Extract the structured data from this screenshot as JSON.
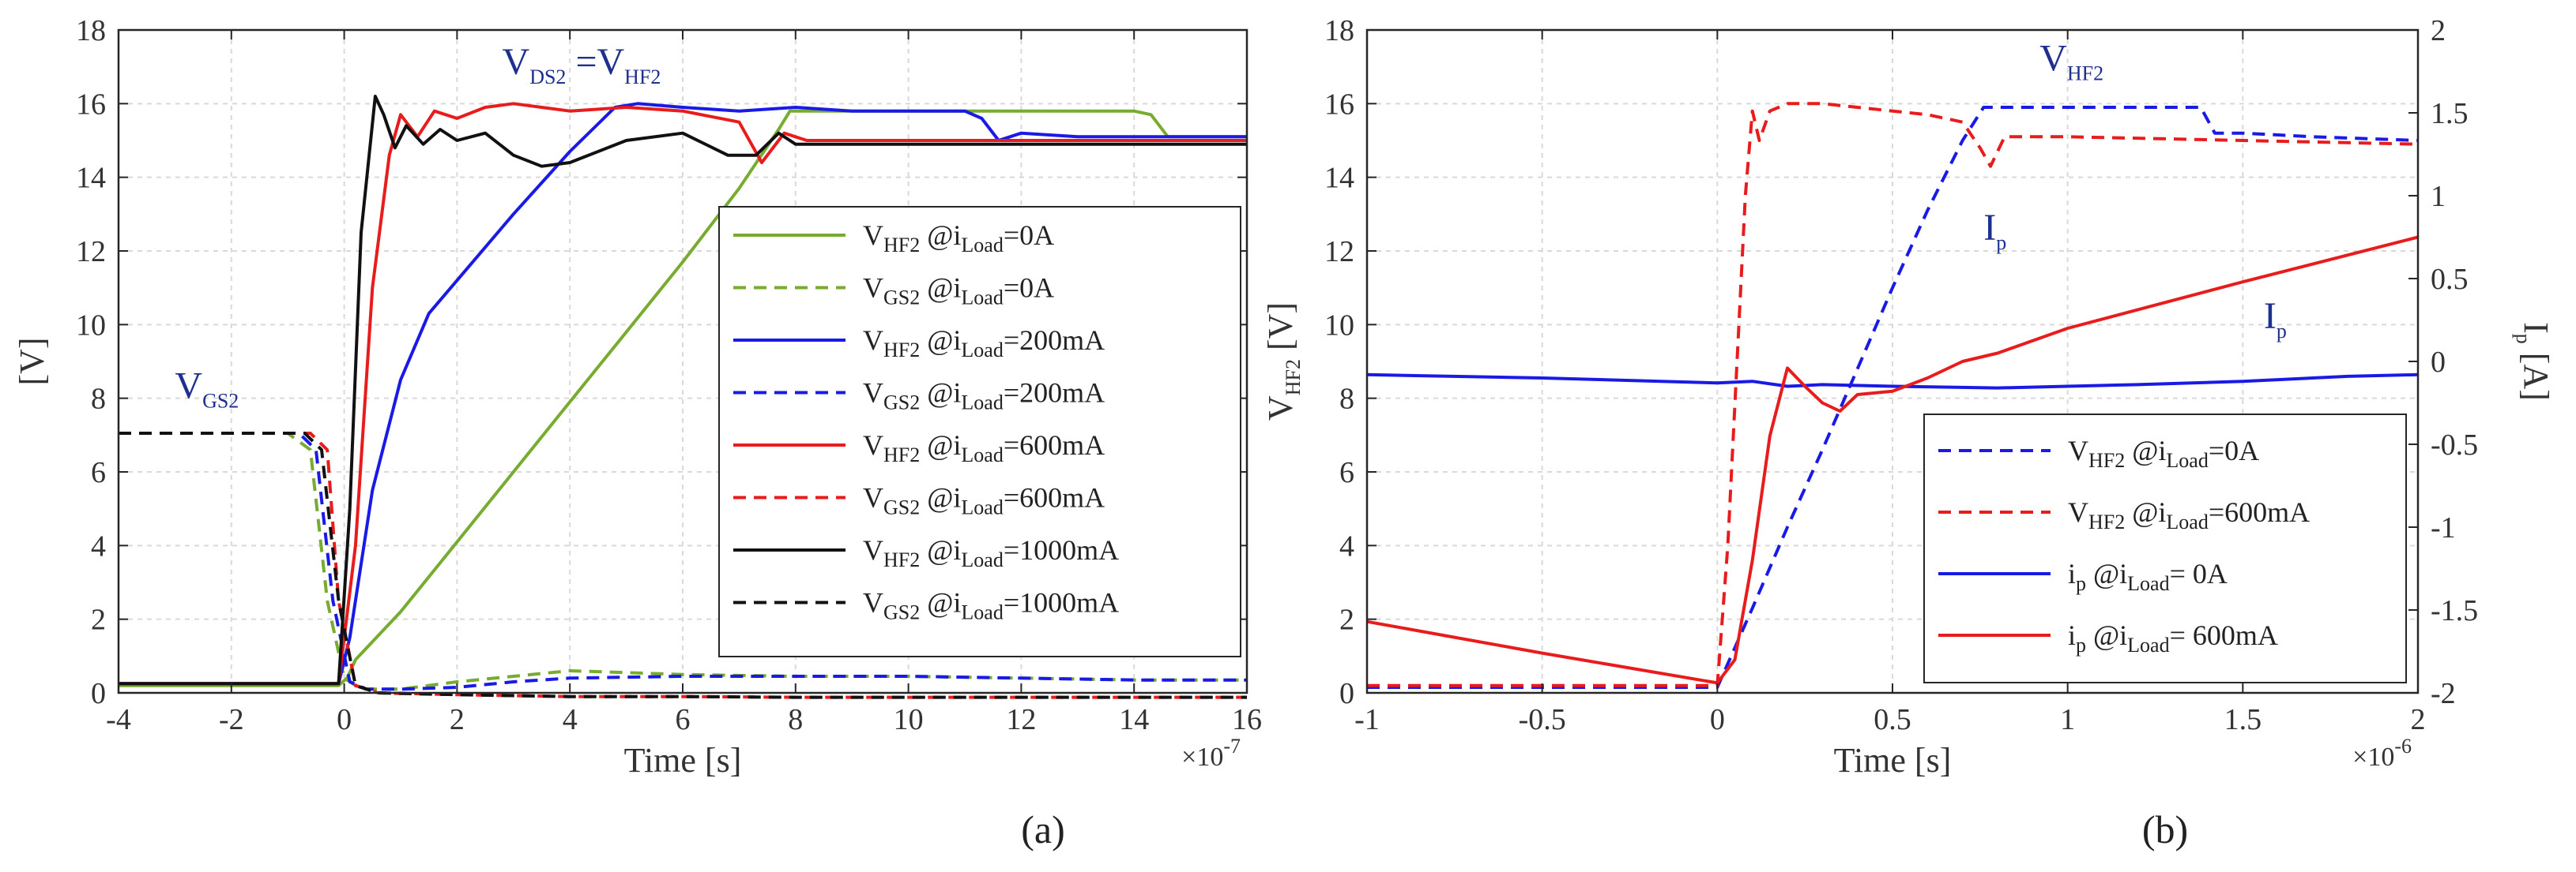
{
  "chart_data": [
    {
      "type": "line",
      "panel_label": "(a)",
      "title": "",
      "xlabel": "Time [s]",
      "ylabel": "[V]",
      "x_exponent": "×10",
      "x_exponent_power": "-7",
      "xlim": [
        -4,
        16
      ],
      "ylim": [
        0,
        18
      ],
      "grid": true,
      "xticks": [
        -4,
        -2,
        0,
        2,
        4,
        6,
        8,
        10,
        12,
        14,
        16
      ],
      "xtick_labels": [
        "-4",
        "-2",
        "0",
        "2",
        "4",
        "6",
        "8",
        "10",
        "12",
        "14",
        "16"
      ],
      "yticks": [
        0,
        2,
        4,
        6,
        8,
        10,
        12,
        14,
        16,
        18
      ],
      "ytick_labels": [
        "0",
        "2",
        "4",
        "6",
        "8",
        "10",
        "12",
        "14",
        "16",
        "18"
      ],
      "annotations": [
        {
          "base": "V",
          "sub": "DS2",
          "mid": " =V",
          "sub2": "HF2",
          "x": 2.8,
          "y": 16.8
        },
        {
          "base": "V",
          "sub": "GS2",
          "mid": "",
          "sub2": "",
          "x": -3.0,
          "y": 8.0
        }
      ],
      "legend_position": "center-right",
      "series": [
        {
          "name": "V_HF2 @i_Load=0A",
          "lbl": {
            "v": "V",
            "vs": "HF2",
            "at": " @i",
            "is": "Load",
            "val": "=0A"
          },
          "color": "#77ac30",
          "dash": false,
          "x": [
            -4,
            -0.1,
            0.05,
            0.2,
            1,
            2,
            3,
            4,
            5,
            6,
            7,
            7.7,
            7.9,
            8.2,
            9,
            10,
            11,
            12,
            13,
            14,
            14.3,
            14.6,
            16
          ],
          "y": [
            0.2,
            0.2,
            0.4,
            0.9,
            2.2,
            4.1,
            6.0,
            7.9,
            9.8,
            11.7,
            13.7,
            15.3,
            15.8,
            15.8,
            15.8,
            15.8,
            15.8,
            15.8,
            15.8,
            15.8,
            15.7,
            15.1,
            15.1
          ]
        },
        {
          "name": "V_GS2 @i_Load=0A",
          "lbl": {
            "v": "V",
            "vs": "GS2",
            "at": " @i",
            "is": "Load",
            "val": "=0A"
          },
          "color": "#77ac30",
          "dash": true,
          "x": [
            -4,
            -1.0,
            -0.6,
            -0.3,
            0.0,
            0.3,
            1,
            2,
            3,
            4,
            5,
            6,
            8,
            10,
            12,
            14,
            16
          ],
          "y": [
            7.05,
            7.05,
            6.6,
            2.5,
            0.4,
            0.1,
            0.1,
            0.3,
            0.45,
            0.6,
            0.55,
            0.5,
            0.45,
            0.45,
            0.4,
            0.35,
            0.35
          ]
        },
        {
          "name": "V_HF2 @i_Load=200mA",
          "lbl": {
            "v": "V",
            "vs": "HF2",
            "at": " @i",
            "is": "Load",
            "val": "=200mA"
          },
          "color": "#1a1ae6",
          "dash": false,
          "x": [
            -4,
            -0.1,
            0.1,
            0.5,
            1.0,
            1.5,
            2.0,
            3,
            4,
            4.8,
            5.2,
            6,
            7,
            8,
            9,
            10,
            11,
            11.3,
            11.6,
            12,
            13,
            14,
            16
          ],
          "y": [
            0.25,
            0.25,
            1.5,
            5.5,
            8.5,
            10.3,
            11.2,
            13.0,
            14.7,
            15.9,
            16.0,
            15.9,
            15.8,
            15.9,
            15.8,
            15.8,
            15.8,
            15.6,
            15.0,
            15.2,
            15.1,
            15.1,
            15.1
          ]
        },
        {
          "name": "V_GS2 @i_Load=200mA",
          "lbl": {
            "v": "V",
            "vs": "GS2",
            "at": " @i",
            "is": "Load",
            "val": "=200mA"
          },
          "color": "#1a1ae6",
          "dash": true,
          "x": [
            -4,
            -0.8,
            -0.5,
            -0.2,
            0.1,
            0.4,
            1,
            2,
            3,
            4,
            6,
            8,
            10,
            12,
            14,
            16
          ],
          "y": [
            7.05,
            7.05,
            6.6,
            2.5,
            0.3,
            0.1,
            0.1,
            0.15,
            0.3,
            0.4,
            0.45,
            0.45,
            0.45,
            0.4,
            0.35,
            0.35
          ]
        },
        {
          "name": "V_HF2 @i_Load=600mA",
          "lbl": {
            "v": "V",
            "vs": "HF2",
            "at": " @i",
            "is": "Load",
            "val": "=600mA"
          },
          "color": "#e81c1c",
          "dash": false,
          "x": [
            -4,
            -0.1,
            0.2,
            0.5,
            0.8,
            1.0,
            1.3,
            1.6,
            2.0,
            2.5,
            3.0,
            3.5,
            4.0,
            5,
            6,
            7.0,
            7.4,
            7.8,
            8.2,
            9,
            10,
            12,
            14,
            16
          ],
          "y": [
            0.25,
            0.25,
            4.0,
            11.0,
            14.6,
            15.7,
            15.1,
            15.8,
            15.6,
            15.9,
            16.0,
            15.9,
            15.8,
            15.9,
            15.8,
            15.5,
            14.4,
            15.2,
            15.0,
            15.0,
            15.0,
            15.0,
            15.0,
            15.0
          ]
        },
        {
          "name": "V_GS2 @i_Load=600mA",
          "lbl": {
            "v": "V",
            "vs": "GS2",
            "at": " @i",
            "is": "Load",
            "val": "=600mA"
          },
          "color": "#e81c1c",
          "dash": true,
          "x": [
            -4,
            -0.6,
            -0.3,
            -0.1,
            0.2,
            0.6,
            2,
            4,
            6,
            8,
            10,
            12,
            14,
            16
          ],
          "y": [
            7.05,
            7.05,
            6.6,
            2.5,
            0.2,
            0.0,
            -0.05,
            -0.1,
            -0.1,
            -0.12,
            -0.12,
            -0.12,
            -0.12,
            -0.12
          ]
        },
        {
          "name": "V_HF2 @i_Load=1000mA",
          "lbl": {
            "v": "V",
            "vs": "HF2",
            "at": " @i",
            "is": "Load",
            "val": "=1000mA"
          },
          "color": "#111111",
          "dash": false,
          "x": [
            -4,
            -0.1,
            0.1,
            0.3,
            0.55,
            0.7,
            0.9,
            1.1,
            1.4,
            1.7,
            2.0,
            2.5,
            3.0,
            3.5,
            4.0,
            5,
            6,
            6.8,
            7.3,
            7.7,
            8.0,
            9,
            12,
            16
          ],
          "y": [
            0.25,
            0.25,
            5.0,
            12.5,
            16.2,
            15.7,
            14.8,
            15.4,
            14.9,
            15.3,
            15.0,
            15.2,
            14.6,
            14.3,
            14.4,
            15.0,
            15.2,
            14.6,
            14.6,
            15.2,
            14.9,
            14.9,
            14.9,
            14.9
          ]
        },
        {
          "name": "V_GS2 @i_Load=1000mA",
          "lbl": {
            "v": "V",
            "vs": "GS2",
            "at": " @i",
            "is": "Load",
            "val": "=1000mA"
          },
          "color": "#111111",
          "dash": true,
          "x": [
            -4,
            -0.7,
            -0.4,
            -0.1,
            0.2,
            0.6,
            2,
            4,
            6,
            8,
            10,
            12,
            14,
            16
          ],
          "y": [
            7.05,
            7.05,
            6.6,
            2.5,
            0.2,
            0.0,
            -0.05,
            -0.1,
            -0.1,
            -0.12,
            -0.12,
            -0.12,
            -0.12,
            -0.12
          ]
        }
      ]
    },
    {
      "type": "line",
      "panel_label": "(b)",
      "title": "",
      "xlabel": "Time [s]",
      "ylabel": "V_HF2 [V]",
      "ylabel_parts": {
        "base": "V",
        "sub": "HF2",
        "unit": " [V]"
      },
      "y2label": "I_p [A]",
      "y2label_parts": {
        "base": "I",
        "sub": "p",
        "unit": "[A]"
      },
      "x_exponent": "×10",
      "x_exponent_power": "-6",
      "xlim": [
        -1,
        2
      ],
      "ylim": [
        0,
        18
      ],
      "y2lim": [
        -2,
        2
      ],
      "grid": true,
      "xticks": [
        -1,
        -0.5,
        0,
        0.5,
        1,
        1.5,
        2
      ],
      "xtick_labels": [
        "-1",
        "-0.5",
        "0",
        "0.5",
        "1",
        "1.5",
        "2"
      ],
      "yticks": [
        0,
        2,
        4,
        6,
        8,
        10,
        12,
        14,
        16,
        18
      ],
      "ytick_labels": [
        "0",
        "2",
        "4",
        "6",
        "8",
        "10",
        "12",
        "14",
        "16",
        "18"
      ],
      "y2ticks": [
        -2,
        -1.5,
        -1,
        -0.5,
        0,
        0.5,
        1,
        1.5,
        2
      ],
      "y2tick_labels": [
        "-2",
        "-1.5",
        "-1",
        "-0.5",
        "0",
        "0.5",
        "1",
        "1.5",
        "2"
      ],
      "annotations": [
        {
          "base": "V",
          "sub": "HF2",
          "mid": "",
          "sub2": "",
          "x": 0.92,
          "y": 16.9
        },
        {
          "base": "I",
          "sub": "p",
          "mid": "",
          "sub2": "",
          "x": 0.76,
          "y": 12.3
        },
        {
          "base": "I",
          "sub": "p",
          "mid": "",
          "sub2": "",
          "x": 1.56,
          "y": 9.9
        }
      ],
      "legend_position": "lower-right",
      "series": [
        {
          "name": "V_HF2 @i_Load=0A",
          "lbl": {
            "v": "V",
            "vs": "HF2",
            "at": " @i",
            "is": "Load",
            "val": "=0A"
          },
          "axis": "left",
          "color": "#1a1ae6",
          "dash": true,
          "x": [
            -1,
            0.0,
            0.1,
            0.2,
            0.3,
            0.4,
            0.5,
            0.6,
            0.7,
            0.76,
            0.8,
            1.0,
            1.2,
            1.38,
            1.42,
            1.5,
            1.7,
            2.0
          ],
          "y": [
            0.15,
            0.15,
            2.3,
            4.5,
            6.6,
            8.8,
            11.0,
            13.1,
            15.0,
            15.9,
            15.9,
            15.9,
            15.9,
            15.9,
            15.2,
            15.2,
            15.1,
            15.0
          ]
        },
        {
          "name": "V_HF2 @i_Load=600mA",
          "lbl": {
            "v": "V",
            "vs": "HF2",
            "at": " @i",
            "is": "Load",
            "val": "=600mA"
          },
          "axis": "left",
          "color": "#e81c1c",
          "dash": true,
          "x": [
            -1,
            0.0,
            0.03,
            0.08,
            0.1,
            0.12,
            0.15,
            0.2,
            0.3,
            0.4,
            0.5,
            0.6,
            0.7,
            0.75,
            0.78,
            0.82,
            1.0,
            1.5,
            2.0
          ],
          "y": [
            0.2,
            0.2,
            4.0,
            13.5,
            15.8,
            15.0,
            15.8,
            16.0,
            16.0,
            15.9,
            15.8,
            15.7,
            15.5,
            14.8,
            14.3,
            15.1,
            15.1,
            15.0,
            14.9
          ]
        },
        {
          "name": "i_p @i_Load= 0A",
          "lbl": {
            "v": "i",
            "vs": "p",
            "at": "   @i",
            "is": "Load",
            "val": "= 0A"
          },
          "axis": "right",
          "color": "#1a1ae6",
          "dash": false,
          "x": [
            -1,
            -0.5,
            0.0,
            0.1,
            0.2,
            0.3,
            0.5,
            0.8,
            1.0,
            1.2,
            1.5,
            1.8,
            2.0
          ],
          "y": [
            -0.08,
            -0.1,
            -0.13,
            -0.12,
            -0.15,
            -0.14,
            -0.15,
            -0.16,
            -0.15,
            -0.14,
            -0.12,
            -0.09,
            -0.08
          ]
        },
        {
          "name": "i_p @i_Load= 600mA",
          "lbl": {
            "v": "i",
            "vs": "p",
            "at": "   @i",
            "is": "Load",
            "val": "= 600mA"
          },
          "axis": "right",
          "color": "#e81c1c",
          "dash": false,
          "x": [
            -1,
            -0.5,
            0.0,
            0.05,
            0.1,
            0.15,
            0.2,
            0.25,
            0.3,
            0.35,
            0.4,
            0.5,
            0.6,
            0.7,
            0.8,
            1.0,
            1.5,
            2.0
          ],
          "y": [
            -1.57,
            -1.76,
            -1.94,
            -1.8,
            -1.2,
            -0.45,
            -0.04,
            -0.15,
            -0.25,
            -0.3,
            -0.2,
            -0.18,
            -0.1,
            0.0,
            0.05,
            0.2,
            0.48,
            0.75
          ]
        }
      ]
    }
  ]
}
